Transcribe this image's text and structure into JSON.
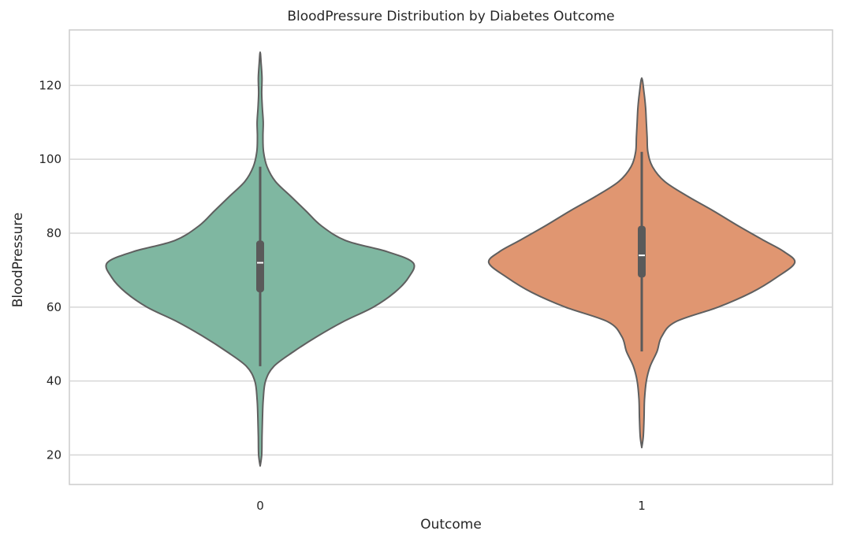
{
  "chart_data": {
    "type": "violin",
    "title": "BloodPressure Distribution by Diabetes Outcome",
    "xlabel": "Outcome",
    "ylabel": "BloodPressure",
    "ylim": [
      12,
      135
    ],
    "yticks": [
      20,
      40,
      60,
      80,
      100,
      120
    ],
    "grid": "horizontal",
    "categories": [
      "0",
      "1"
    ],
    "series": [
      {
        "category": "0",
        "color": "#7fb7a1",
        "kde_min": 17,
        "kde_max": 129,
        "whisker_low": 44,
        "q1": 64,
        "median": 72,
        "q3": 78,
        "whisker_high": 98,
        "density": [
          [
            17,
            0.0
          ],
          [
            20,
            0.01
          ],
          [
            25,
            0.012
          ],
          [
            30,
            0.015
          ],
          [
            35,
            0.02
          ],
          [
            40,
            0.035
          ],
          [
            44,
            0.09
          ],
          [
            48,
            0.22
          ],
          [
            52,
            0.37
          ],
          [
            56,
            0.54
          ],
          [
            60,
            0.74
          ],
          [
            64,
            0.88
          ],
          [
            68,
            0.97
          ],
          [
            72,
            1.0
          ],
          [
            75,
            0.83
          ],
          [
            78,
            0.56
          ],
          [
            82,
            0.4
          ],
          [
            86,
            0.3
          ],
          [
            90,
            0.2
          ],
          [
            94,
            0.1
          ],
          [
            98,
            0.045
          ],
          [
            102,
            0.022
          ],
          [
            106,
            0.018
          ],
          [
            110,
            0.02
          ],
          [
            114,
            0.014
          ],
          [
            118,
            0.01
          ],
          [
            122,
            0.012
          ],
          [
            126,
            0.006
          ],
          [
            129,
            0.0
          ]
        ]
      },
      {
        "category": "1",
        "color": "#e09671",
        "kde_min": 22,
        "kde_max": 122,
        "whisker_low": 48,
        "q1": 68,
        "median": 74,
        "q3": 82,
        "whisker_high": 102,
        "density": [
          [
            22,
            0.0
          ],
          [
            25,
            0.01
          ],
          [
            30,
            0.015
          ],
          [
            35,
            0.018
          ],
          [
            40,
            0.03
          ],
          [
            44,
            0.055
          ],
          [
            48,
            0.1
          ],
          [
            52,
            0.13
          ],
          [
            56,
            0.22
          ],
          [
            60,
            0.5
          ],
          [
            64,
            0.72
          ],
          [
            68,
            0.88
          ],
          [
            72,
            1.0
          ],
          [
            75,
            0.93
          ],
          [
            78,
            0.8
          ],
          [
            82,
            0.63
          ],
          [
            86,
            0.47
          ],
          [
            90,
            0.3
          ],
          [
            94,
            0.15
          ],
          [
            98,
            0.07
          ],
          [
            102,
            0.04
          ],
          [
            106,
            0.035
          ],
          [
            110,
            0.03
          ],
          [
            114,
            0.025
          ],
          [
            118,
            0.015
          ],
          [
            122,
            0.0
          ]
        ]
      }
    ]
  }
}
